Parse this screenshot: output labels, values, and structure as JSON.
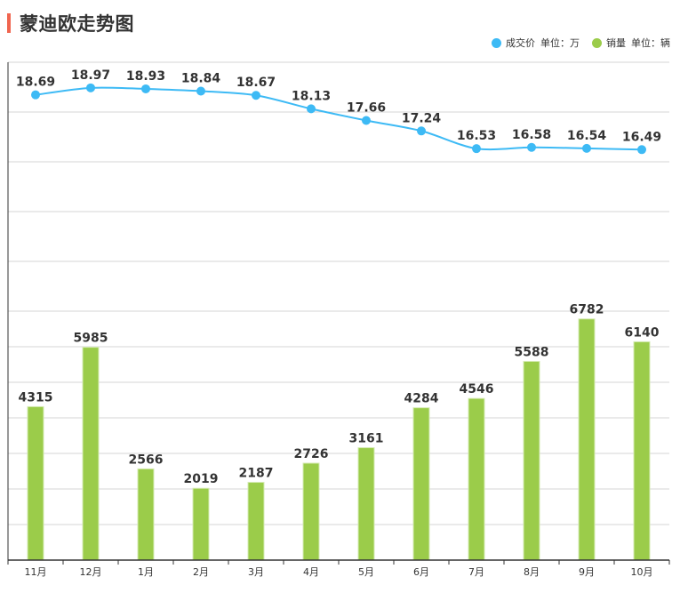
{
  "header": {
    "title": "蒙迪欧走势图",
    "accent_color": "#f0654f"
  },
  "legend": {
    "items": [
      {
        "name": "成交价",
        "unit": "单位：万",
        "color": "#3dbaf5",
        "icon": "circle-dot-icon"
      },
      {
        "name": "销量",
        "unit": "单位：辆",
        "color": "#9bcc4a",
        "icon": "circle-dot-icon"
      }
    ]
  },
  "chart_data": {
    "type": "bar+line",
    "title": "蒙迪欧走势图",
    "categories": [
      "11月",
      "12月",
      "1月",
      "2月",
      "3月",
      "4月",
      "5月",
      "6月",
      "7月",
      "8月",
      "9月",
      "10月"
    ],
    "series": [
      {
        "name": "成交价",
        "unit": "单位：万",
        "type": "line",
        "color": "#3dbaf5",
        "values": [
          18.69,
          18.97,
          18.93,
          18.84,
          18.67,
          18.13,
          17.66,
          17.24,
          16.53,
          16.58,
          16.54,
          16.49
        ],
        "axis_range": [
          10,
          20
        ]
      },
      {
        "name": "销量",
        "unit": "单位：辆",
        "type": "bar",
        "color": "#9bcc4a",
        "values": [
          4315,
          5985,
          2566,
          2019,
          2187,
          2726,
          3161,
          4284,
          4546,
          5588,
          6782,
          6140
        ],
        "axis_range": [
          0,
          7000
        ]
      }
    ],
    "xlabel": "",
    "ylabel": "",
    "grid": true,
    "legend_position": "top-right",
    "data_labels": true
  }
}
